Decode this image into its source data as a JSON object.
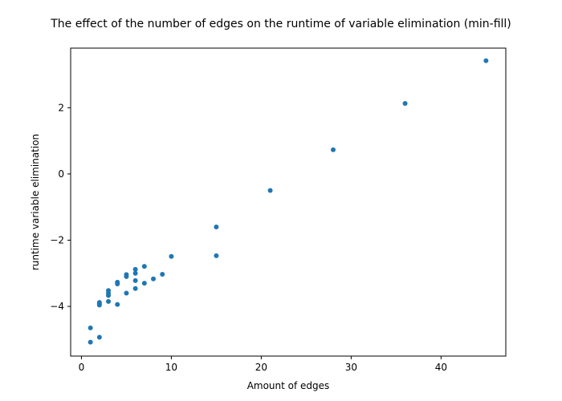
{
  "chart_data": {
    "type": "scatter",
    "title": "The effect of the number of edges on the runtime of variable elimination (min-fill)",
    "xlabel": "Amount of edges",
    "ylabel": "runtime variable elimination",
    "xlim": [
      -1.2,
      47.2
    ],
    "ylim": [
      -5.5,
      3.8
    ],
    "xticks": [
      0,
      10,
      20,
      30,
      40
    ],
    "yticks": [
      -4,
      -2,
      0,
      2
    ],
    "grid": false,
    "marker_color": "#1f77b4",
    "series": [
      {
        "x": [
          1,
          1,
          2,
          2,
          2,
          2,
          3,
          3,
          3,
          3,
          4,
          4,
          4,
          5,
          5,
          5,
          6,
          6,
          6,
          6,
          7,
          7,
          8,
          9,
          10,
          15,
          15,
          21,
          28,
          36,
          45
        ],
        "y": [
          -4.65,
          -5.08,
          -4.93,
          -3.88,
          -3.92,
          -3.96,
          -3.52,
          -3.6,
          -3.67,
          -3.85,
          -3.27,
          -3.32,
          -3.94,
          -3.04,
          -3.1,
          -3.6,
          -2.88,
          -3.0,
          -3.22,
          -3.46,
          -2.79,
          -3.3,
          -3.17,
          -3.03,
          -2.49,
          -1.6,
          -2.47,
          -0.5,
          0.73,
          2.13,
          3.42
        ]
      }
    ]
  }
}
